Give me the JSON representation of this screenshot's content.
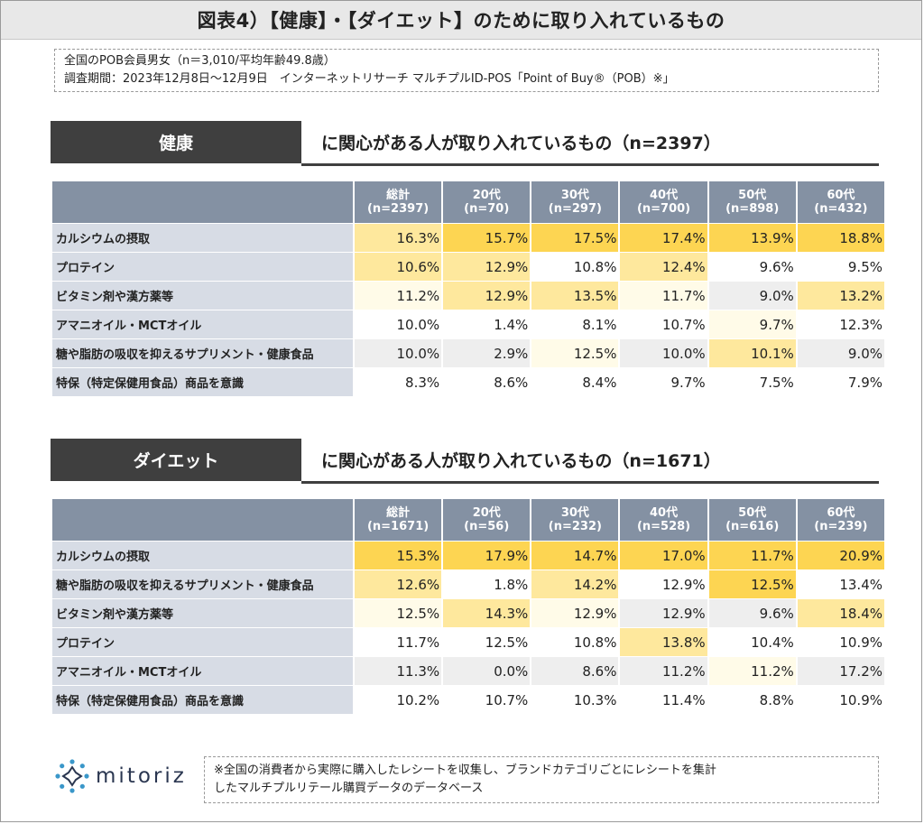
{
  "title": "図表4）【健康】・【ダイエット】のために取り入れているもの",
  "info": {
    "line1": "全国のPOB会員男女（n＝3,010/平均年齢49.8歳）",
    "line2": "調査期間：2023年12月8日～12月9日　インターネットリサーチ マルチプルID-POS「Point of Buy®（POB）※」"
  },
  "colors": {
    "header_bg": "#8491a3",
    "label_bg": "#d7dce5",
    "tag_bg": "#3f3f3f",
    "heat_high": "#fdd552",
    "heat_low": "#fffbe8",
    "neutral_even": "#eeeeee",
    "neutral_odd": "#ffffff"
  },
  "chart_data": [
    {
      "type": "table",
      "tag": "健康",
      "subtitle": "に関心がある人が取り入れているもの（n=2397）",
      "columns": [
        {
          "name": "総計",
          "n": "(n=2397)"
        },
        {
          "name": "20代",
          "n": "(n=70)"
        },
        {
          "name": "30代",
          "n": "(n=297)"
        },
        {
          "name": "40代",
          "n": "(n=700)"
        },
        {
          "name": "50代",
          "n": "(n=898)"
        },
        {
          "name": "60代",
          "n": "(n=432)"
        }
      ],
      "rows": [
        {
          "label": "カルシウムの摂取",
          "values": [
            "16.3%",
            "15.7%",
            "17.5%",
            "17.4%",
            "13.9%",
            "18.8%"
          ]
        },
        {
          "label": "プロテイン",
          "values": [
            "10.6%",
            "12.9%",
            "10.8%",
            "12.4%",
            "9.6%",
            "9.5%"
          ]
        },
        {
          "label": "ビタミン剤や漢方薬等",
          "values": [
            "11.2%",
            "12.9%",
            "13.5%",
            "11.7%",
            "9.0%",
            "13.2%"
          ]
        },
        {
          "label": "アマニオイル・MCTオイル",
          "values": [
            "10.0%",
            "1.4%",
            "8.1%",
            "10.7%",
            "9.7%",
            "12.3%"
          ]
        },
        {
          "label": "糖や脂肪の吸収を抑えるサプリメント・健康食品",
          "values": [
            "10.0%",
            "2.9%",
            "12.5%",
            "10.0%",
            "10.1%",
            "9.0%"
          ]
        },
        {
          "label": "特保（特定保健用食品）商品を意識",
          "values": [
            "8.3%",
            "8.6%",
            "8.4%",
            "9.7%",
            "7.5%",
            "7.9%"
          ]
        }
      ],
      "highlight": [
        [
          2,
          3,
          3,
          3,
          3,
          3
        ],
        [
          2,
          2,
          0,
          2,
          0,
          0
        ],
        [
          1,
          2,
          2,
          1,
          0,
          2
        ],
        [
          0,
          0,
          0,
          0,
          1,
          0
        ],
        [
          0,
          0,
          1,
          0,
          2,
          0
        ],
        [
          0,
          0,
          0,
          0,
          0,
          0
        ]
      ]
    },
    {
      "type": "table",
      "tag": "ダイエット",
      "subtitle": "に関心がある人が取り入れているもの（n=1671）",
      "columns": [
        {
          "name": "総計",
          "n": "(n=1671)"
        },
        {
          "name": "20代",
          "n": "(n=56)"
        },
        {
          "name": "30代",
          "n": "(n=232)"
        },
        {
          "name": "40代",
          "n": "(n=528)"
        },
        {
          "name": "50代",
          "n": "(n=616)"
        },
        {
          "name": "60代",
          "n": "(n=239)"
        }
      ],
      "rows": [
        {
          "label": "カルシウムの摂取",
          "values": [
            "15.3%",
            "17.9%",
            "14.7%",
            "17.0%",
            "11.7%",
            "20.9%"
          ]
        },
        {
          "label": "糖や脂肪の吸収を抑えるサプリメント・健康食品",
          "values": [
            "12.6%",
            "1.8%",
            "14.2%",
            "12.9%",
            "12.5%",
            "13.4%"
          ]
        },
        {
          "label": "ビタミン剤や漢方薬等",
          "values": [
            "12.5%",
            "14.3%",
            "12.9%",
            "12.9%",
            "9.6%",
            "18.4%"
          ]
        },
        {
          "label": "プロテイン",
          "values": [
            "11.7%",
            "12.5%",
            "10.8%",
            "13.8%",
            "10.4%",
            "10.9%"
          ]
        },
        {
          "label": "アマニオイル・MCTオイル",
          "values": [
            "11.3%",
            "0.0%",
            "8.6%",
            "11.2%",
            "11.2%",
            "17.2%"
          ]
        },
        {
          "label": "特保（特定保健用食品）商品を意識",
          "values": [
            "10.2%",
            "10.7%",
            "10.3%",
            "11.4%",
            "8.8%",
            "10.9%"
          ]
        }
      ],
      "highlight": [
        [
          3,
          3,
          3,
          3,
          3,
          3
        ],
        [
          2,
          0,
          2,
          0,
          3,
          0
        ],
        [
          1,
          2,
          1,
          0,
          0,
          2
        ],
        [
          0,
          0,
          0,
          2,
          0,
          0
        ],
        [
          0,
          0,
          0,
          0,
          1,
          0
        ],
        [
          0,
          0,
          0,
          0,
          0,
          0
        ]
      ]
    }
  ],
  "logo": {
    "name": "mitoriz"
  },
  "footnote": {
    "line1": "※全国の消費者から実際に購入したレシートを収集し、ブランドカテゴリごとにレシートを集計",
    "line2": "したマルチプルリテール購買データのデータベース"
  }
}
